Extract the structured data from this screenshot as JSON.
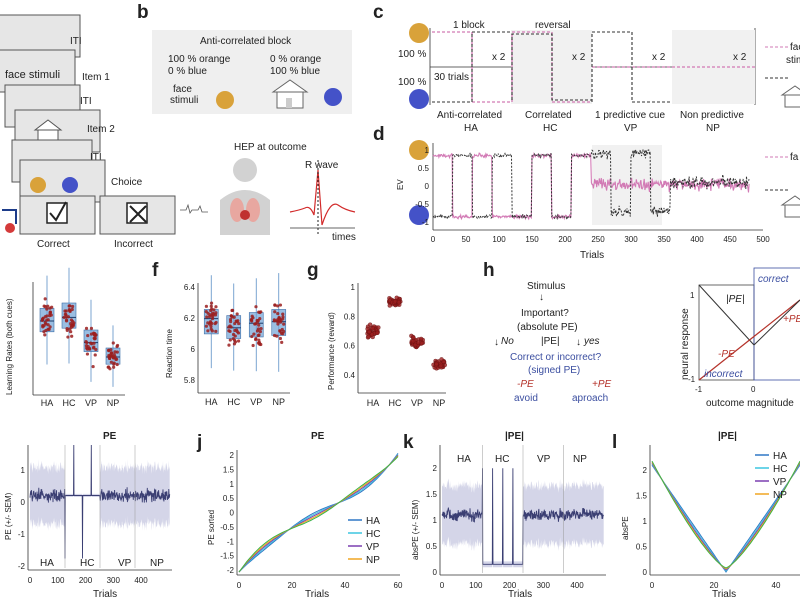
{
  "panel_letters": [
    "b",
    "c",
    "d",
    "f",
    "g",
    "h",
    "j",
    "k",
    "l"
  ],
  "panel_a": {
    "screens": [
      "ITI",
      "face stimuli",
      "Item 1",
      "ITI",
      "Item 2",
      "ITI",
      "Choice"
    ],
    "feedback": [
      "Correct",
      "Incorrect"
    ]
  },
  "panel_b": {
    "block_title": "Anti-correlated block",
    "left_probs": [
      "100 % orange",
      "0 % blue"
    ],
    "right_probs": [
      "0 % orange",
      "100 % blue"
    ],
    "stim_label": [
      "face",
      "stimuli"
    ],
    "hep_title": "HEP at outcome",
    "r_wave": "R wave",
    "times": "times"
  },
  "panel_c": {
    "block_label": "1 block",
    "reversal": "reversal",
    "trials_label": "30 trials",
    "pct_top": "100 %",
    "pct_bottom": "100 %",
    "repeat": [
      "x 2",
      "x 2",
      "x 2",
      "x 2"
    ],
    "conditions": [
      {
        "name": "Anti-correlated",
        "abbr": "HA"
      },
      {
        "name": "Correlated",
        "abbr": "HC"
      },
      {
        "name": "1 predictive cue",
        "abbr": "VP"
      },
      {
        "name": "Non predictive",
        "abbr": "NP"
      }
    ],
    "legend_text": [
      "face",
      "stimuli"
    ]
  },
  "panel_d": {
    "ylabel": "EV",
    "xlabel": "Trials",
    "yticks": [
      "1",
      "0.5",
      "0",
      "-0.5",
      "-1"
    ],
    "xticks": [
      "0",
      "50",
      "100",
      "150",
      "200",
      "250",
      "300",
      "350",
      "400",
      "450",
      "500"
    ],
    "legend_text": [
      "fa"
    ]
  },
  "panel_e": {
    "ylabel": "Learning Rates (both cues)",
    "xticks": [
      "HA",
      "HC",
      "VP",
      "NP"
    ]
  },
  "panel_f": {
    "ylabel": "Reaction time",
    "yticks": [
      "6.4",
      "6.2",
      "6",
      "5.8"
    ],
    "xticks": [
      "HA",
      "HC",
      "VP",
      "NP"
    ]
  },
  "panel_g": {
    "ylabel": "Performance (reward)",
    "yticks": [
      "1",
      "0.8",
      "0.6",
      "0.4"
    ],
    "xticks": [
      "HA",
      "HC",
      "VP",
      "NP"
    ]
  },
  "panel_h": {
    "flow": {
      "stimulus": "Stimulus",
      "important": "Important?",
      "abs_pe": "(absolute PE)",
      "no": "No",
      "yes": "yes",
      "abs_pe_symbol": "|PE|",
      "correct_q": "Correct or incorrect?",
      "signed_pe": "(signed PE)",
      "neg_pe": "-PE",
      "pos_pe": "+PE",
      "avoid": "avoid",
      "approach": "aproach"
    },
    "plot": {
      "ylabel": "neural response",
      "xlabel": "outcome magnitude",
      "correct": "correct",
      "incorrect": "incorrect",
      "abs_pe": "|PE|",
      "neg_pe": "-PE",
      "pos_pe": "+PE",
      "y_ticks": [
        "1",
        "-1"
      ],
      "x_ticks": [
        "-1",
        "0"
      ]
    }
  },
  "panel_i": {
    "title": "PE",
    "ylabel": "PE (+/- SEM)",
    "xlabel": "Trials",
    "yticks": [
      "1",
      "0",
      "-1",
      "-2"
    ],
    "xticks": [
      "0",
      "100",
      "200",
      "300",
      "400"
    ],
    "conds": [
      "HA",
      "HC",
      "VP",
      "NP"
    ]
  },
  "panel_j": {
    "title": "PE",
    "ylabel": "PE sorted",
    "xlabel": "Trials",
    "yticks": [
      "2",
      "1.5",
      "1",
      "0.5",
      "0",
      "-0.5",
      "-1",
      "-1.5",
      "-2"
    ],
    "xticks": [
      "0",
      "20",
      "40",
      "60"
    ],
    "legend": [
      "HA",
      "HC",
      "VP",
      "NP"
    ]
  },
  "panel_k": {
    "title": "|PE|",
    "ylabel": "absPE (+/- SEM)",
    "xlabel": "Trials",
    "yticks": [
      "2",
      "1.5",
      "1",
      "0.5",
      "0"
    ],
    "xticks": [
      "0",
      "100",
      "200",
      "300",
      "400"
    ],
    "conds": [
      "HA",
      "HC",
      "VP",
      "NP"
    ]
  },
  "panel_l": {
    "title": "|PE|",
    "ylabel": "absPE",
    "xlabel": "Trials",
    "yticks": [
      "2",
      "1.5",
      "1",
      "0.5",
      "0"
    ],
    "xticks": [
      "0",
      "20",
      "40"
    ],
    "legend": [
      "HA",
      "HC",
      "VP",
      "NP"
    ]
  },
  "colors": {
    "orange": "#d9a23a",
    "blue": "#4452c8",
    "pink": "#d27ab5",
    "dark": "#3a3a3a",
    "box": "#6fa3d6",
    "dot": "#9b1f1f",
    "HA": "#2f77c5",
    "HC": "#3cc6e0",
    "VP": "#7a3fb0",
    "NP": "#f0a623",
    "green": "#3bb34a"
  },
  "chart_data": [
    {
      "panel": "e",
      "type": "box",
      "categories": [
        "HA",
        "HC",
        "VP",
        "NP"
      ],
      "medians": [
        0.8,
        0.82,
        0.68,
        0.6
      ],
      "q1": [
        0.74,
        0.76,
        0.63,
        0.56
      ],
      "q3": [
        0.87,
        0.9,
        0.75,
        0.65
      ],
      "ylim": [
        0.4,
        1.0
      ]
    },
    {
      "panel": "f",
      "type": "box",
      "categories": [
        "HA",
        "HC",
        "VP",
        "NP"
      ],
      "medians": [
        6.18,
        6.12,
        6.15,
        6.16
      ],
      "q1": [
        6.08,
        6.05,
        6.06,
        6.07
      ],
      "q3": [
        6.24,
        6.2,
        6.22,
        6.24
      ],
      "ylim": [
        5.7,
        6.4
      ],
      "ylabel": "Reaction time"
    },
    {
      "panel": "g",
      "type": "scatter",
      "categories": [
        "HA",
        "HC",
        "VP",
        "NP"
      ],
      "means": [
        0.74,
        0.93,
        0.67,
        0.53
      ],
      "spread": [
        0.06,
        0.04,
        0.06,
        0.04
      ],
      "ylim": [
        0.35,
        1.05
      ],
      "ylabel": "Performance (reward)"
    },
    {
      "panel": "j",
      "type": "line",
      "x_range": [
        0,
        60
      ],
      "ylim": [
        -2,
        2
      ],
      "series": [
        "HA",
        "HC",
        "VP",
        "NP"
      ]
    },
    {
      "panel": "l",
      "type": "line",
      "x_range": [
        0,
        60
      ],
      "ylim": [
        0,
        2
      ],
      "series": [
        "HA",
        "HC",
        "VP",
        "NP"
      ]
    }
  ]
}
